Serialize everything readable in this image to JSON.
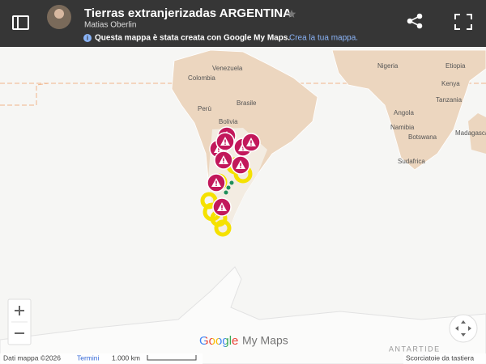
{
  "header": {
    "title": "Tierras extranjerizadas ARGENTINA",
    "author": "Matias Oberlin",
    "notice": "Questa mappa è stata creata con Google My Maps.",
    "notice_link": "Crea la tua mappa."
  },
  "map": {
    "labels": [
      "Venezuela",
      "Colombia",
      "Perù",
      "Brasile",
      "Bolivia",
      "Nigeria",
      "Etiopia",
      "Kenya",
      "Tanzania",
      "Angola",
      "Namibia",
      "Botswana",
      "Sudafrica",
      "Madagascar"
    ],
    "antarctica": "ANTARTIDE"
  },
  "logo": {
    "google": "Google",
    "product": "My Maps"
  },
  "footer": {
    "attribution": "Dati mappa ©2026",
    "terms": "Termini",
    "scale": "1.000 km",
    "shortcuts": "Scorciatoie da tastiera"
  }
}
